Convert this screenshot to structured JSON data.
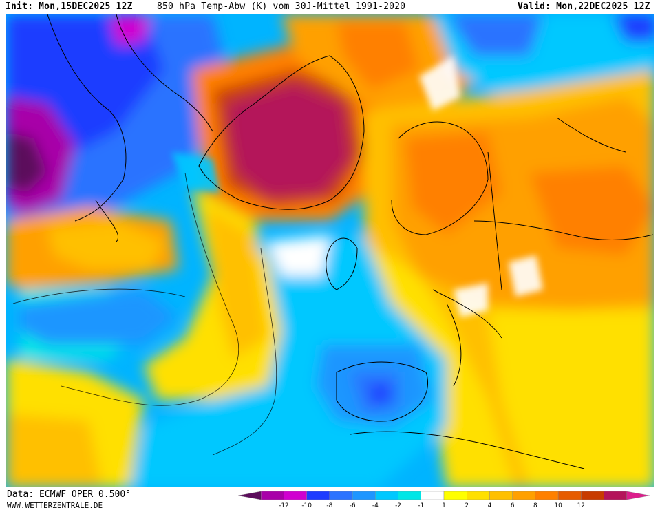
{
  "header": {
    "init": "Init: Mon,15DEC2025 12Z",
    "title": "850 hPa Temp-Abw (K) vom 30J-Mittel 1991-2020",
    "valid": "Valid: Mon,22DEC2025 12Z"
  },
  "footer": {
    "source": "Data: ECMWF OPER 0.500°",
    "website": "WWW.WETTERZENTRALE.DE"
  },
  "legend": {
    "ticks": [
      "-12",
      "-10",
      "-8",
      "-6",
      "-4",
      "-2",
      "-1",
      "1",
      "2",
      "4",
      "6",
      "8",
      "10",
      "12"
    ],
    "colors": [
      "#5c0d5c",
      "#a800a8",
      "#d000d0",
      "#1e3cff",
      "#2b73ff",
      "#1e96ff",
      "#00c8ff",
      "#00e6e6",
      "#ffffff",
      "#ffff00",
      "#ffe000",
      "#ffc000",
      "#ffa000",
      "#ff8000",
      "#e65c00",
      "#c83c00",
      "#b4145a",
      "#dc1e8c"
    ]
  },
  "map_palette": {
    "cold_extreme": "#5c0d5c",
    "cold_strong": "#a800a8",
    "cold_dark_blue": "#1e3cff",
    "cold_blue": "#2b73ff",
    "cold_light_blue": "#1e96ff",
    "cold_cyan": "#00c8ff",
    "neutral": "#ffffff",
    "warm_yellow": "#ffff00",
    "warm_gold": "#ffe000",
    "warm_orange": "#ffa000",
    "warm_dark_orange": "#ff8000",
    "warm_red": "#c83c00",
    "warm_crimson": "#b4145a"
  }
}
